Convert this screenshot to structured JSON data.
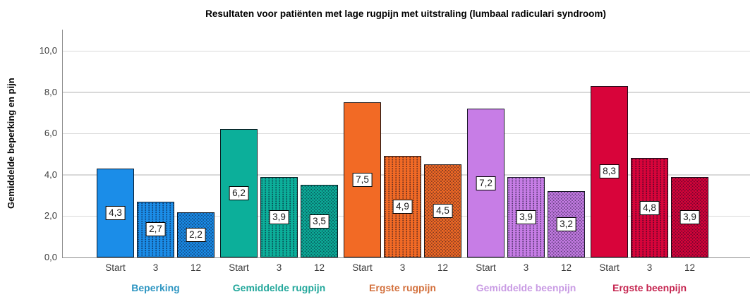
{
  "chart_data": {
    "type": "bar",
    "title": "Resultaten voor patiënten met lage rugpijn met uitstraling (lumbaal radiculari syndroom)",
    "ylabel": "Gemiddelde beperking en pijn",
    "xlabel": "",
    "ylim": [
      0,
      10
    ],
    "ytick_values": [
      0,
      2,
      4,
      6,
      8,
      10
    ],
    "ytick_labels": [
      "0,0",
      "2,0",
      "4,0",
      "6,0",
      "8,0",
      "10,0"
    ],
    "categories": [
      "Start",
      "3",
      "12"
    ],
    "bar_patterns": [
      "solid",
      "dots-vertical",
      "dots-grid"
    ],
    "grid": true,
    "legend_position": "none",
    "value_labels_shown": true,
    "series": [
      {
        "name": "Beperking",
        "color": "#1b8de8",
        "label_color": "#2e96c2",
        "values": [
          4.3,
          2.7,
          2.2
        ],
        "value_labels": [
          "4,3",
          "2,7",
          "2,2"
        ]
      },
      {
        "name": "Gemiddelde rugpijn",
        "color": "#0caf9a",
        "label_color": "#22a79b",
        "values": [
          6.2,
          3.9,
          3.5
        ],
        "value_labels": [
          "6,2",
          "3,9",
          "3,5"
        ]
      },
      {
        "name": "Ergste rugpijn",
        "color": "#f26a25",
        "label_color": "#d3703c",
        "values": [
          7.5,
          4.9,
          4.5
        ],
        "value_labels": [
          "7,5",
          "4,9",
          "4,5"
        ]
      },
      {
        "name": "Gemiddelde beenpijn",
        "color": "#c77de6",
        "label_color": "#c99be4",
        "values": [
          7.2,
          3.9,
          3.2
        ],
        "value_labels": [
          "7,2",
          "3,9",
          "3,2"
        ]
      },
      {
        "name": "Ergste beenpijn",
        "color": "#d8043a",
        "label_color": "#c52550",
        "values": [
          8.3,
          4.8,
          3.9
        ],
        "value_labels": [
          "8,3",
          "4,8",
          "3,9"
        ]
      }
    ],
    "axis_color": "#8e8e8e",
    "gridline_color": "#d9d9d9"
  }
}
